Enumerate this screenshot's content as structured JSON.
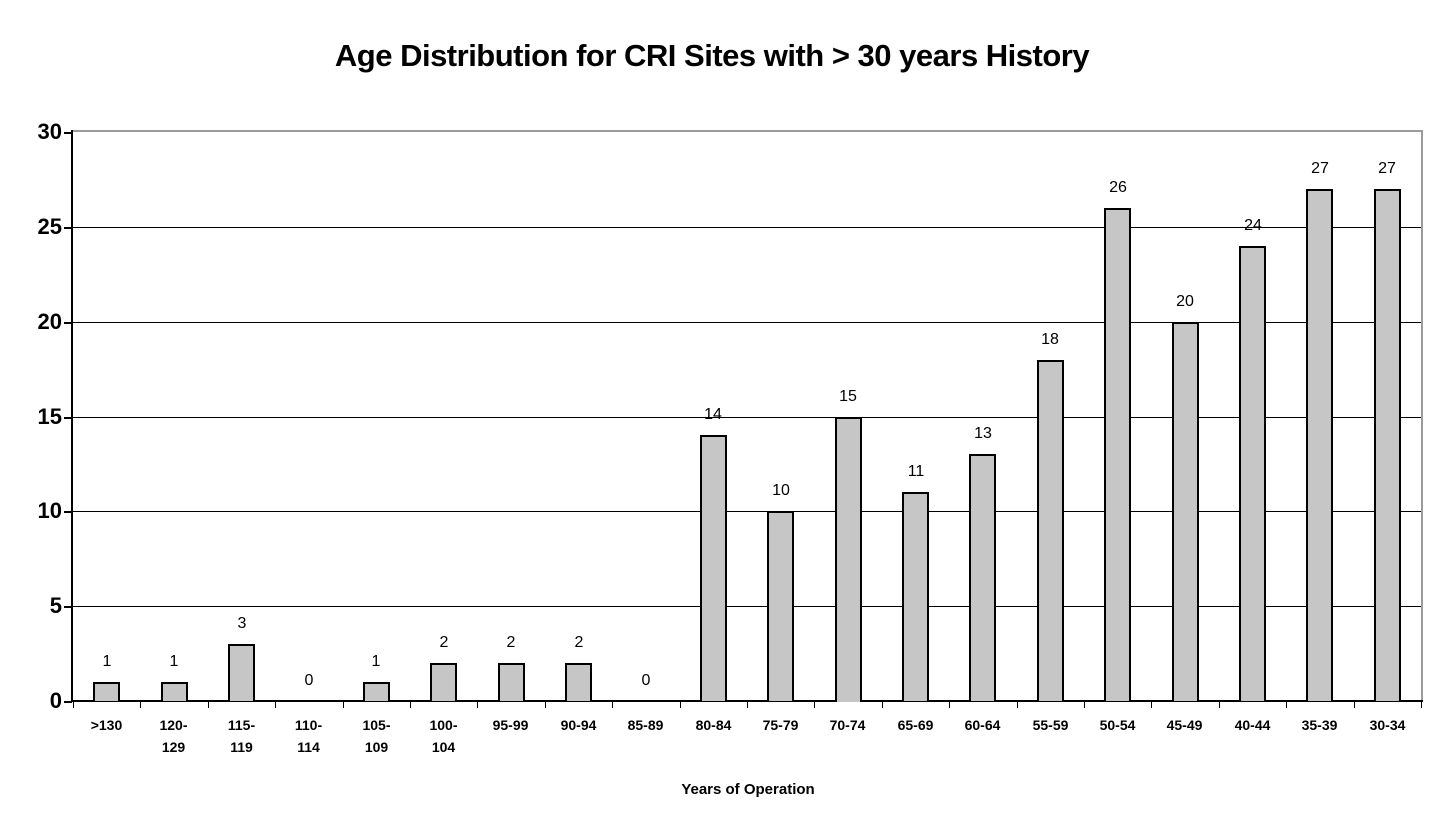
{
  "page": {
    "background_color": "#ffffff",
    "text_color": "#000000"
  },
  "chart_data": {
    "type": "bar",
    "title": "Age Distribution for CRI Sites with > 30 years History",
    "xlabel": "Years of Operation",
    "ylabel": "",
    "ylim": [
      0,
      30
    ],
    "yticks": [
      0,
      5,
      10,
      15,
      20,
      25,
      30
    ],
    "grid": "horizontal gridlines every 5 units",
    "legend_position": "none",
    "bar_fill_color": "#c6c6c6",
    "bar_border_color": "#000000",
    "plot_frame_color": "#9b9b9b",
    "categories": [
      {
        "id": ">130",
        "lines": [
          ">130"
        ]
      },
      {
        "id": "120-129",
        "lines": [
          "120-",
          "129"
        ]
      },
      {
        "id": "115-119",
        "lines": [
          "115-",
          "119"
        ]
      },
      {
        "id": "110-114",
        "lines": [
          "110-",
          "114"
        ]
      },
      {
        "id": "105-109",
        "lines": [
          "105-",
          "109"
        ]
      },
      {
        "id": "100-104",
        "lines": [
          "100-",
          "104"
        ]
      },
      {
        "id": "95-99",
        "lines": [
          "95-99"
        ]
      },
      {
        "id": "90-94",
        "lines": [
          "90-94"
        ]
      },
      {
        "id": "85-89",
        "lines": [
          "85-89"
        ]
      },
      {
        "id": "80-84",
        "lines": [
          "80-84"
        ]
      },
      {
        "id": "75-79",
        "lines": [
          "75-79"
        ]
      },
      {
        "id": "70-74",
        "lines": [
          "70-74"
        ]
      },
      {
        "id": "65-69",
        "lines": [
          "65-69"
        ]
      },
      {
        "id": "60-64",
        "lines": [
          "60-64"
        ]
      },
      {
        "id": "55-59",
        "lines": [
          "55-59"
        ]
      },
      {
        "id": "50-54",
        "lines": [
          "50-54"
        ]
      },
      {
        "id": "45-49",
        "lines": [
          "45-49"
        ]
      },
      {
        "id": "40-44",
        "lines": [
          "40-44"
        ]
      },
      {
        "id": "35-39",
        "lines": [
          "35-39"
        ]
      },
      {
        "id": "30-34",
        "lines": [
          "30-34"
        ]
      }
    ],
    "values": [
      1,
      1,
      3,
      0,
      1,
      2,
      2,
      2,
      0,
      14,
      10,
      15,
      11,
      13,
      18,
      26,
      20,
      24,
      27,
      27
    ]
  }
}
